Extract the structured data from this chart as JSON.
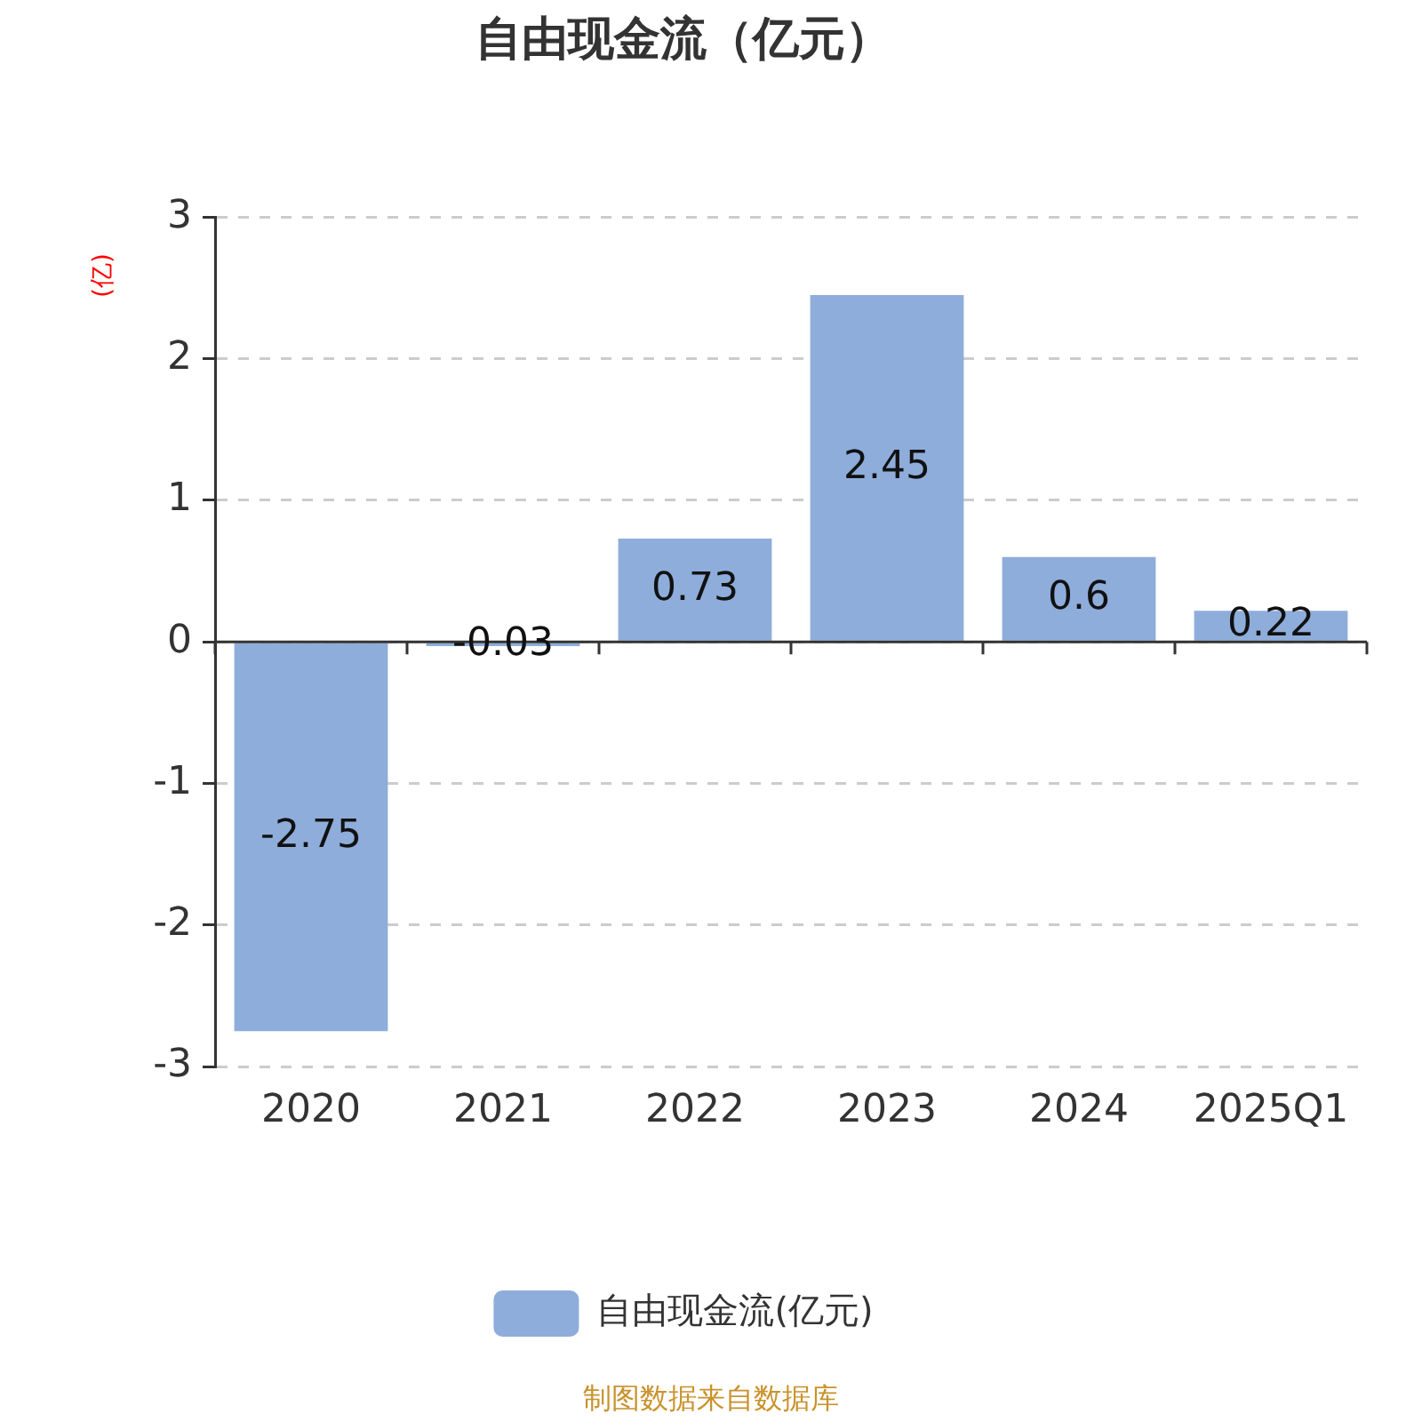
{
  "chart_data": {
    "type": "bar",
    "title": "自由现金流（亿元）",
    "ylabel": "(亿)",
    "categories": [
      "2020",
      "2021",
      "2022",
      "2023",
      "2024",
      "2025Q1"
    ],
    "series": [
      {
        "name": "自由现金流(亿元)",
        "color": "#8eaddb",
        "values": [
          -2.75,
          -0.03,
          0.73,
          2.45,
          0.6,
          0.22
        ]
      }
    ],
    "ylim": [
      -3,
      3
    ],
    "yticks": [
      -3,
      -2,
      -1,
      0,
      1,
      2,
      3
    ],
    "grid": "y",
    "legend": "bottom",
    "data_labels": true,
    "annotations": [
      "制图数据来自数据库"
    ]
  }
}
